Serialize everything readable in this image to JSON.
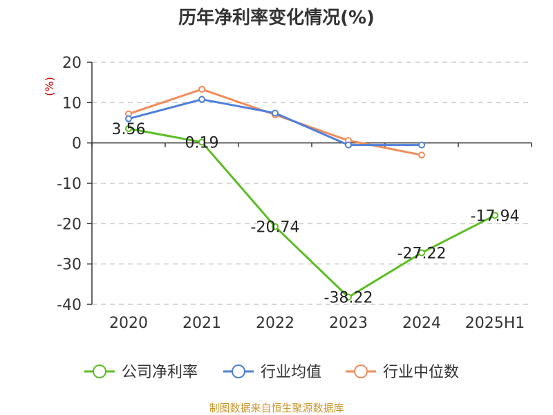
{
  "chart_data": {
    "type": "line",
    "title": "历年净利率变化情况(%)",
    "ylabel": "(%)",
    "categories": [
      "2020",
      "2021",
      "2022",
      "2023",
      "2024",
      "2025H1"
    ],
    "ylim": [
      -40,
      20
    ],
    "yticks": [
      20,
      10,
      0,
      -10,
      -20,
      -30,
      -40
    ],
    "grid": true,
    "legend_position": "bottom",
    "series": [
      {
        "name": "公司净利率",
        "color": "#5cbd24",
        "values": [
          3.56,
          0.19,
          -20.74,
          -38.22,
          -27.22,
          -17.94
        ],
        "labels": [
          "3.56",
          "0.19",
          "-20.74",
          "-38.22",
          "-27.22",
          "-17.94"
        ]
      },
      {
        "name": "行业均值",
        "color": "#4f7fd9",
        "values": [
          6.0,
          10.8,
          7.4,
          -0.5,
          -0.5,
          null
        ]
      },
      {
        "name": "行业中位数",
        "color": "#f28c5a",
        "values": [
          7.2,
          13.3,
          7.0,
          0.6,
          -3.0,
          null
        ]
      }
    ]
  },
  "source": "制图数据来自恒生聚源数据库",
  "colors": {
    "ylabel": "#cc0000",
    "source": "#c8962d",
    "grid": "#cccccc",
    "axis": "#333333"
  }
}
